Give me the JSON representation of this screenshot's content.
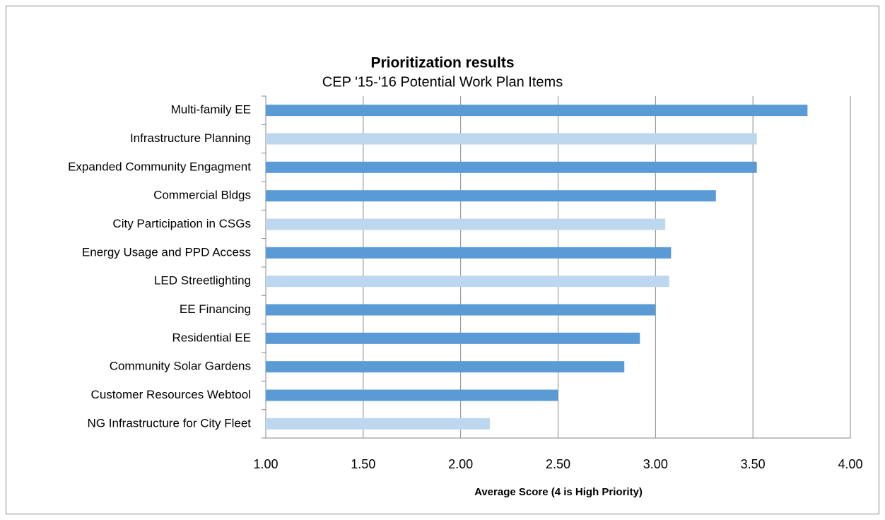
{
  "chart_data": {
    "type": "bar",
    "orientation": "horizontal",
    "title": "Prioritization results",
    "subtitle": "CEP '15-'16 Potential Work Plan Items",
    "x_label": "Average Score (4 is High Priority)",
    "categories": [
      "Multi-family EE",
      "Infrastructure Planning",
      "Expanded Community Engagment",
      "Commercial Bldgs",
      "City Participation in CSGs",
      "Energy Usage and PPD Access",
      "LED Streetlighting",
      "EE Financing",
      "Residential EE",
      "Community Solar Gardens",
      "Customer Resources Webtool",
      "NG Infrastructure for City Fleet"
    ],
    "values": [
      3.78,
      3.52,
      3.52,
      3.31,
      3.05,
      3.08,
      3.07,
      3.0,
      2.92,
      2.84,
      2.5,
      2.15
    ],
    "colors": [
      "#5b9bd5",
      "#bdd7ee",
      "#5b9bd5",
      "#5b9bd5",
      "#bdd7ee",
      "#5b9bd5",
      "#bdd7ee",
      "#5b9bd5",
      "#5b9bd5",
      "#5b9bd5",
      "#5b9bd5",
      "#bdd7ee"
    ],
    "xlim": [
      1.0,
      4.0
    ],
    "xticks": [
      {
        "value": 1.0,
        "label": "1.00"
      },
      {
        "value": 1.5,
        "label": "1.50"
      },
      {
        "value": 2.0,
        "label": "2.00"
      },
      {
        "value": 2.5,
        "label": "2.50"
      },
      {
        "value": 3.0,
        "label": "3.00"
      },
      {
        "value": 3.5,
        "label": "3.50"
      },
      {
        "value": 4.0,
        "label": "4.00"
      }
    ],
    "grid": true
  }
}
